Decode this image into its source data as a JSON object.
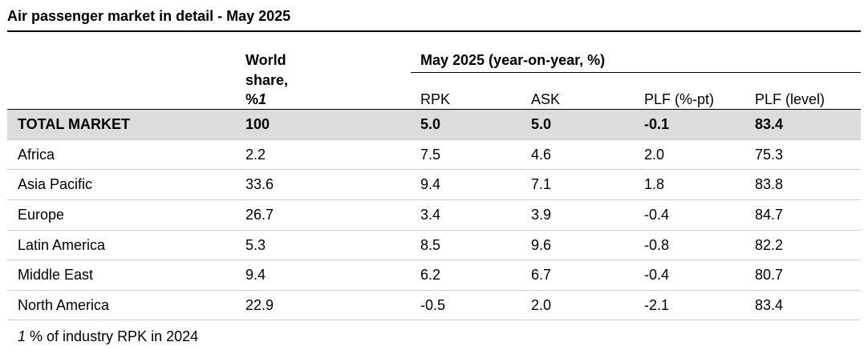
{
  "title": "Air passenger market in detail - May 2025",
  "header": {
    "world_share_line1": "World",
    "world_share_line2": "share,",
    "world_share_line3_prefix": "%",
    "world_share_line3_note": "1",
    "group_label": "May 2025 (year-on-year, %)",
    "columns": [
      "RPK",
      "ASK",
      "PLF (%-pt)",
      "PLF (level)"
    ]
  },
  "rows": [
    {
      "region": "TOTAL MARKET",
      "share": "100",
      "rpk": "5.0",
      "ask": "5.0",
      "plf_pt": "-0.1",
      "plf_level": "83.4"
    },
    {
      "region": "Africa",
      "share": "2.2",
      "rpk": "7.5",
      "ask": "4.6",
      "plf_pt": "2.0",
      "plf_level": "75.3"
    },
    {
      "region": "Asia Pacific",
      "share": "33.6",
      "rpk": "9.4",
      "ask": "7.1",
      "plf_pt": "1.8",
      "plf_level": "83.8"
    },
    {
      "region": "Europe",
      "share": "26.7",
      "rpk": "3.4",
      "ask": "3.9",
      "plf_pt": "-0.4",
      "plf_level": "84.7"
    },
    {
      "region": "Latin America",
      "share": "5.3",
      "rpk": "8.5",
      "ask": "9.6",
      "plf_pt": "-0.8",
      "plf_level": "82.2"
    },
    {
      "region": "Middle East",
      "share": "9.4",
      "rpk": "6.2",
      "ask": "6.7",
      "plf_pt": "-0.4",
      "plf_level": "80.7"
    },
    {
      "region": "North America",
      "share": "22.9",
      "rpk": "-0.5",
      "ask": "2.0",
      "plf_pt": "-2.1",
      "plf_level": "83.4"
    }
  ],
  "footnote": {
    "marker": "1",
    "text": " % of industry RPK in 2024"
  }
}
